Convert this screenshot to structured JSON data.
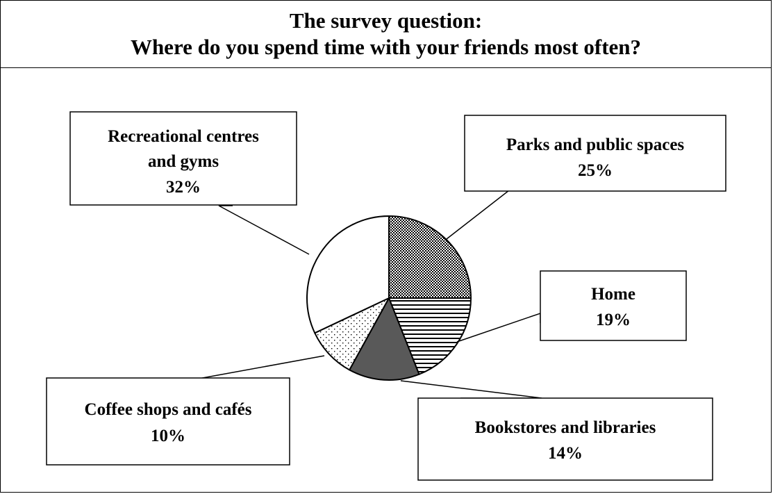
{
  "header": {
    "title_line1": "The survey question:",
    "title_line2": "Where do you spend time with your friends most often?"
  },
  "chart_data": {
    "type": "pie",
    "slices": [
      {
        "label": "Parks and public spaces",
        "value": 25,
        "value_text": "25%",
        "pattern": "checker"
      },
      {
        "label": "Home",
        "value": 19,
        "value_text": "19%",
        "pattern": "hstripes"
      },
      {
        "label": "Bookstores and libraries",
        "value": 14,
        "value_text": "14%",
        "pattern": "solid-gray"
      },
      {
        "label": "Coffee shops and cafés",
        "value": 10,
        "value_text": "10%",
        "pattern": "dots"
      },
      {
        "label": "Recreational centres and gyms",
        "value": 32,
        "value_text": "32%",
        "pattern": "white"
      }
    ],
    "label_lines": {
      "recreational": [
        "Recreational centres",
        "and gyms"
      ],
      "parks": [
        "Parks and public spaces"
      ],
      "home": [
        "Home"
      ],
      "coffee": [
        "Coffee shops and cafés"
      ],
      "bookstores": [
        "Bookstores and libraries"
      ]
    },
    "colors": {
      "stroke": "#000000",
      "gray_fill": "#595959"
    }
  }
}
